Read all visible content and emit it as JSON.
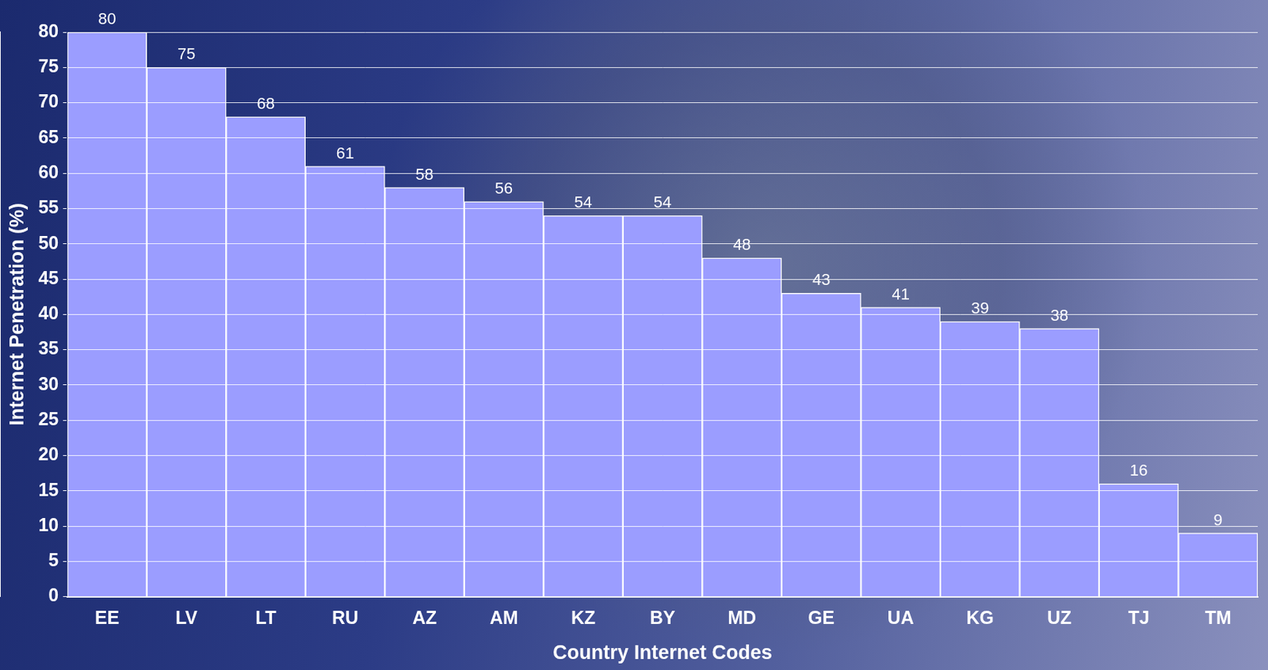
{
  "chart_data": {
    "type": "bar",
    "x_label": "Country Internet Codes",
    "y_label": "Internet Penetration (%)",
    "categories": [
      "EE",
      "LV",
      "LT",
      "RU",
      "AZ",
      "AM",
      "KZ",
      "BY",
      "MD",
      "GE",
      "UA",
      "KG",
      "UZ",
      "TJ",
      "TM"
    ],
    "values": [
      80,
      75,
      68,
      61,
      58,
      56,
      54,
      54,
      48,
      43,
      41,
      39,
      38,
      16,
      9
    ],
    "color": "#9b9dff",
    "ylim": [
      0,
      80
    ],
    "yticks": [
      0,
      5,
      10,
      15,
      20,
      25,
      30,
      35,
      40,
      45,
      50,
      55,
      60,
      65,
      70,
      75,
      80
    ],
    "grid": true,
    "data_labels": true
  }
}
